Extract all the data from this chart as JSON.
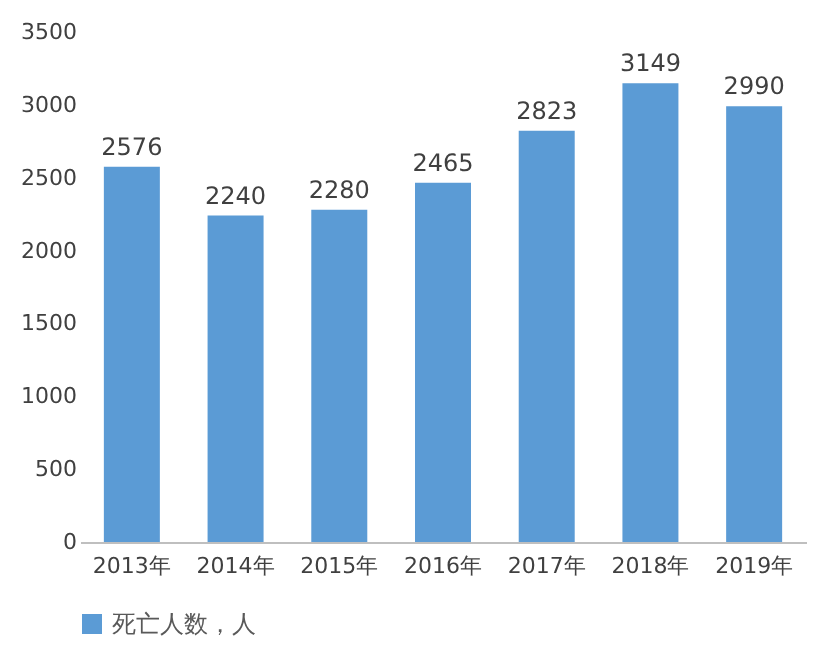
{
  "chart_data": {
    "type": "bar",
    "categories": [
      "2013年",
      "2014年",
      "2015年",
      "2016年",
      "2017年",
      "2018年",
      "2019年"
    ],
    "series": [
      {
        "name": "死亡人数，人",
        "color": "#5b9bd5",
        "values": [
          2576,
          2240,
          2280,
          2465,
          2823,
          3149,
          2990
        ]
      }
    ],
    "ylim": [
      0,
      3500
    ],
    "yticks": [
      0,
      500,
      1000,
      1500,
      2000,
      2500,
      3000,
      3500
    ],
    "data_labels": true,
    "grid": false,
    "legend": "bottom"
  }
}
